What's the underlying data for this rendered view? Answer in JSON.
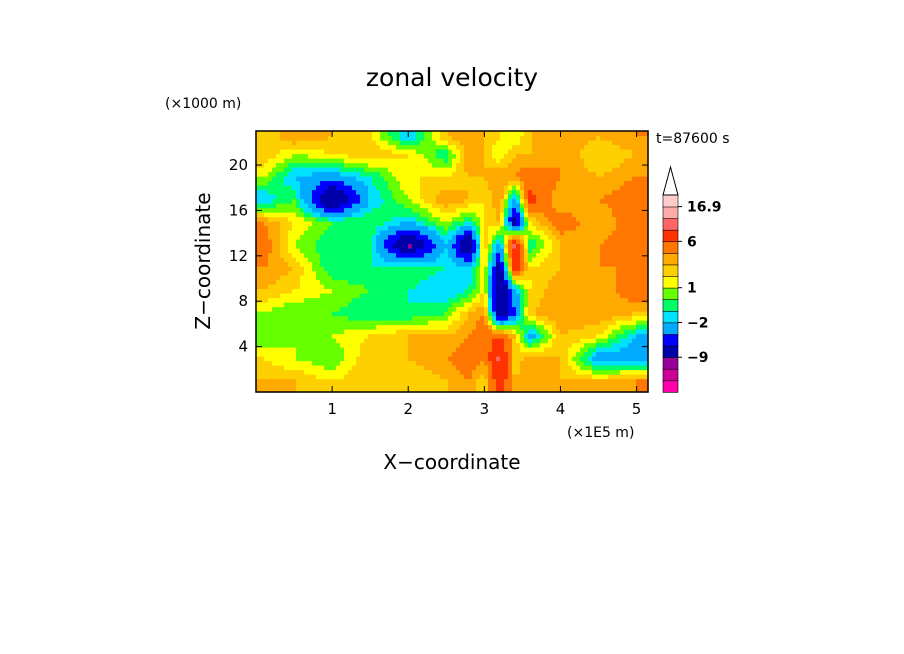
{
  "chart_data": {
    "type": "heatmap",
    "title": "zonal velocity",
    "xlabel": "X−coordinate",
    "ylabel": "Z−coordinate",
    "x_multiplier": "(×1E5 m)",
    "y_multiplier": "(×1000 m)",
    "time_label": "t=87600 s",
    "xlim": [
      0,
      5.15
    ],
    "ylim": [
      0,
      23
    ],
    "xticks": [
      "1",
      "2",
      "3",
      "4",
      "5"
    ],
    "yticks": [
      "4",
      "8",
      "12",
      "16",
      "20"
    ],
    "xtick_values": [
      1,
      2,
      3,
      4,
      5
    ],
    "ytick_values": [
      4,
      8,
      12,
      16,
      20
    ],
    "colorbar": {
      "levels": [
        "16.9",
        "6",
        "1",
        "−2",
        "−9"
      ],
      "level_values": [
        16.9,
        6,
        1,
        -2,
        -9
      ],
      "colors": [
        "#ff00aa",
        "#cc0099",
        "#990099",
        "#0000aa",
        "#0000ff",
        "#00aaff",
        "#00e0ff",
        "#00ff66",
        "#66ff00",
        "#ffff00",
        "#ffd000",
        "#ffaa00",
        "#ff7700",
        "#ff3300",
        "#ff6666",
        "#ffaaaa",
        "#ffcccc"
      ],
      "extend": "max"
    },
    "field_description_values": {
      "x": [
        0.1,
        0.5,
        1.0,
        1.5,
        2.0,
        2.5,
        2.8,
        3.0,
        3.2,
        3.4,
        3.6,
        4.0,
        4.5,
        5.0
      ],
      "z": [
        1,
        3,
        5,
        7,
        9,
        11,
        13,
        15,
        17,
        19,
        21,
        22.5
      ],
      "u": [
        [
          3,
          3,
          2,
          3,
          2,
          3,
          4,
          2,
          8,
          3,
          4,
          3,
          3,
          4
        ],
        [
          2,
          1,
          0,
          3,
          3,
          4,
          5,
          4,
          10,
          2,
          4,
          3,
          -3,
          -3
        ],
        [
          0,
          1,
          1,
          2,
          3,
          3,
          4,
          5,
          6,
          3,
          -3,
          3,
          2,
          -2
        ],
        [
          1,
          0,
          0,
          -1,
          -1,
          0,
          3,
          4,
          -9,
          -4,
          3,
          4,
          4,
          3
        ],
        [
          3,
          2,
          1,
          0,
          -1,
          -2,
          -1,
          2,
          -10,
          -3,
          2,
          4,
          3,
          5
        ],
        [
          4,
          3,
          -1,
          -1,
          0,
          -1,
          -2,
          2,
          -8,
          8,
          2,
          3,
          4,
          4
        ],
        [
          5,
          1,
          -1,
          -1,
          -10,
          -2,
          -10,
          3,
          -3,
          10,
          -1,
          3,
          4,
          5
        ],
        [
          4,
          2,
          0,
          0,
          -2,
          1,
          -1,
          2,
          3,
          -8,
          2,
          5,
          3,
          5
        ],
        [
          -2,
          0,
          -10,
          -2,
          1,
          4,
          3,
          2,
          4,
          -3,
          7,
          3,
          4,
          5
        ],
        [
          1,
          -2,
          -3,
          -1,
          2,
          2,
          3,
          3,
          4,
          4,
          5,
          4,
          3,
          4
        ],
        [
          3,
          1,
          2,
          3,
          2,
          -1,
          4,
          3,
          1,
          3,
          3,
          4,
          2,
          3
        ],
        [
          2,
          4,
          3,
          2,
          -2,
          3,
          4,
          3,
          2,
          1,
          3,
          4,
          3,
          4
        ]
      ]
    }
  }
}
